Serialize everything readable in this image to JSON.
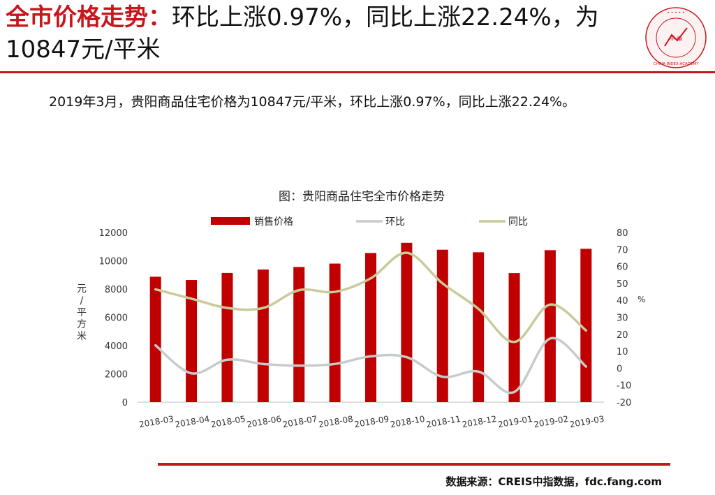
{
  "header": {
    "title_red": "全市价格走势：",
    "title_rest": "环比上涨0.97%，同比上涨22.24%，为10847元/平米",
    "logo_text": "CHINA INDEX ACADEMY",
    "logo_center": "中 指"
  },
  "subtitle": "2019年3月，贵阳商品住宅价格为10847元/平米，环比上涨0.97%，同比上涨22.24%。",
  "source": "数据来源：CREIS中指数据，fdc.fang.com",
  "colors": {
    "accent": "#c8161d",
    "bar": "#c00000",
    "hb_line": "#c8cbcb",
    "tb_line": "#c9ca9b"
  },
  "chart_data": {
    "type": "bar",
    "title": "图：贵阳商品住宅全市价格走势",
    "categories": [
      "2018-03",
      "2018-04",
      "2018-05",
      "2018-06",
      "2018-07",
      "2018-08",
      "2018-09",
      "2018-10",
      "2018-11",
      "2018-12",
      "2019-01",
      "2019-02",
      "2019-03"
    ],
    "series": [
      {
        "name": "销售价格",
        "type": "bar",
        "axis": "left",
        "values": [
          8870,
          8640,
          9140,
          9380,
          9560,
          9800,
          10550,
          11270,
          10780,
          10600,
          9130,
          10750,
          10847
        ]
      },
      {
        "name": "环比",
        "type": "line",
        "axis": "right",
        "values": [
          13.5,
          -3,
          5,
          2.5,
          1.5,
          2.5,
          7,
          6.5,
          -5,
          -2,
          -14,
          17.5,
          0.97
        ]
      },
      {
        "name": "同比",
        "type": "line",
        "axis": "right",
        "values": [
          46.5,
          41,
          35.5,
          35.5,
          46,
          45,
          53,
          68,
          50,
          35,
          15.5,
          37.5,
          22.24
        ]
      }
    ],
    "ylabel_left": "元/平方米",
    "ylabel_right": "%",
    "ylim_left": [
      0,
      12000
    ],
    "yticks_left": [
      0,
      2000,
      4000,
      6000,
      8000,
      10000,
      12000
    ],
    "ylim_right": [
      -20,
      80
    ],
    "yticks_right": [
      -20,
      -10,
      0,
      10,
      20,
      30,
      40,
      50,
      60,
      70,
      80
    ],
    "grid": false,
    "legend": "top-center"
  }
}
